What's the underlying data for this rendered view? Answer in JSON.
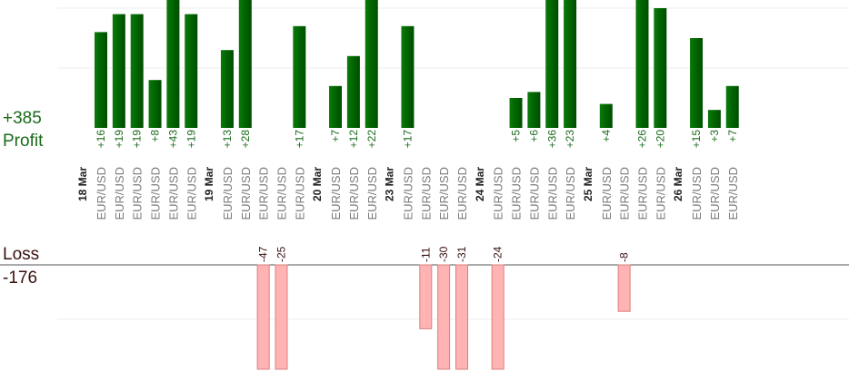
{
  "summary": {
    "profit_total": "+385",
    "profit_label": "Profit",
    "loss_label": "Loss",
    "loss_total": "-176"
  },
  "colors": {
    "profit_bar": "#006400",
    "profit_text": "#1a6b1a",
    "loss_bar": "#ffb3b3",
    "loss_bar_border": "#d98080",
    "loss_text": "#3a1010",
    "gridline": "#ececec",
    "baseline": "#555555"
  },
  "chart_data": {
    "type": "bar",
    "unit": "pips",
    "grid": true,
    "profit_axis_max": 21,
    "loss_axis_max": 18,
    "groups": [
      {
        "date": "18 Mar",
        "trades": [
          {
            "pair": "EUR/USD",
            "value": 16,
            "label": "+16"
          },
          {
            "pair": "EUR/USD",
            "value": 19,
            "label": "+19"
          },
          {
            "pair": "EUR/USD",
            "value": 19,
            "label": "+19"
          },
          {
            "pair": "EUR/USD",
            "value": 8,
            "label": "+8"
          },
          {
            "pair": "EUR/USD",
            "value": 43,
            "label": "+43"
          },
          {
            "pair": "EUR/USD",
            "value": 19,
            "label": "+19"
          }
        ]
      },
      {
        "date": "19 Mar",
        "trades": [
          {
            "pair": "EUR/USD",
            "value": 13,
            "label": "+13"
          },
          {
            "pair": "EUR/USD",
            "value": 28,
            "label": "+28"
          },
          {
            "pair": "EUR/USD",
            "value": -47,
            "label": "-47"
          },
          {
            "pair": "EUR/USD",
            "value": -25,
            "label": "-25"
          },
          {
            "pair": "EUR/USD",
            "value": 17,
            "label": "+17"
          }
        ]
      },
      {
        "date": "20 Mar",
        "trades": [
          {
            "pair": "EUR/USD",
            "value": 7,
            "label": "+7"
          },
          {
            "pair": "EUR/USD",
            "value": 12,
            "label": "+12"
          },
          {
            "pair": "EUR/USD",
            "value": 22,
            "label": "+22"
          }
        ]
      },
      {
        "date": "23 Mar",
        "trades": [
          {
            "pair": "EUR/USD",
            "value": 17,
            "label": "+17"
          },
          {
            "pair": "EUR/USD",
            "value": -11,
            "label": "-11"
          },
          {
            "pair": "EUR/USD",
            "value": -30,
            "label": "-30"
          },
          {
            "pair": "EUR/USD",
            "value": -31,
            "label": "-31"
          }
        ]
      },
      {
        "date": "24 Mar",
        "trades": [
          {
            "pair": "EUR/USD",
            "value": -24,
            "label": "-24"
          },
          {
            "pair": "EUR/USD",
            "value": 5,
            "label": "+5"
          },
          {
            "pair": "EUR/USD",
            "value": 6,
            "label": "+6"
          },
          {
            "pair": "EUR/USD",
            "value": 36,
            "label": "+36"
          },
          {
            "pair": "EUR/USD",
            "value": 23,
            "label": "+23"
          }
        ]
      },
      {
        "date": "25 Mar",
        "trades": [
          {
            "pair": "EUR/USD",
            "value": 4,
            "label": "+4"
          },
          {
            "pair": "EUR/USD",
            "value": -8,
            "label": "-8"
          },
          {
            "pair": "EUR/USD",
            "value": 26,
            "label": "+26"
          },
          {
            "pair": "EUR/USD",
            "value": 20,
            "label": "+20"
          }
        ]
      },
      {
        "date": "26 Mar",
        "trades": [
          {
            "pair": "EUR/USD",
            "value": 15,
            "label": "+15"
          },
          {
            "pair": "EUR/USD",
            "value": 3,
            "label": "+3"
          },
          {
            "pair": "EUR/USD",
            "value": 7,
            "label": "+7"
          }
        ]
      }
    ]
  }
}
